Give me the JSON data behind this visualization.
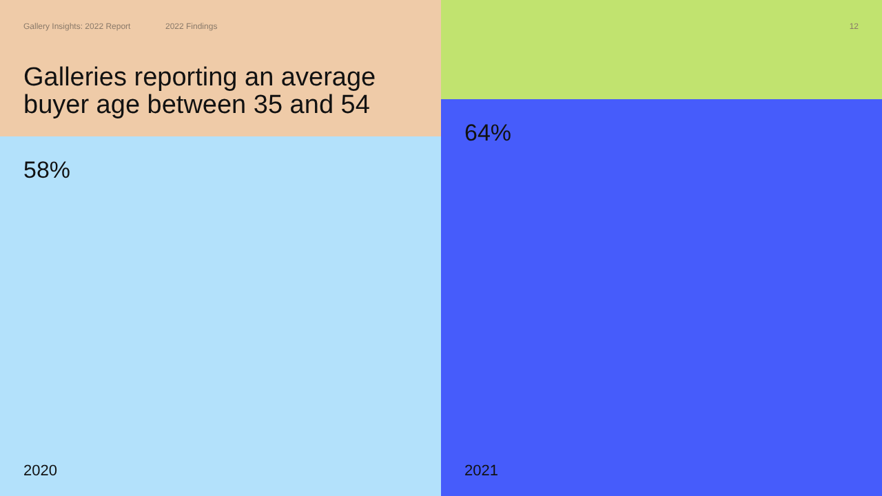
{
  "chart_data": {
    "type": "bar",
    "title": "Galleries reporting an average buyer age between 35 and 54",
    "categories": [
      "2020",
      "2021"
    ],
    "values": [
      58,
      64
    ],
    "colors": [
      "#b3e1fb",
      "#465cfb"
    ],
    "value_labels": [
      "58%",
      "64%"
    ],
    "annotations": [
      "Gallery Insights: 2022 Report",
      "2022 Findings",
      "12"
    ]
  }
}
